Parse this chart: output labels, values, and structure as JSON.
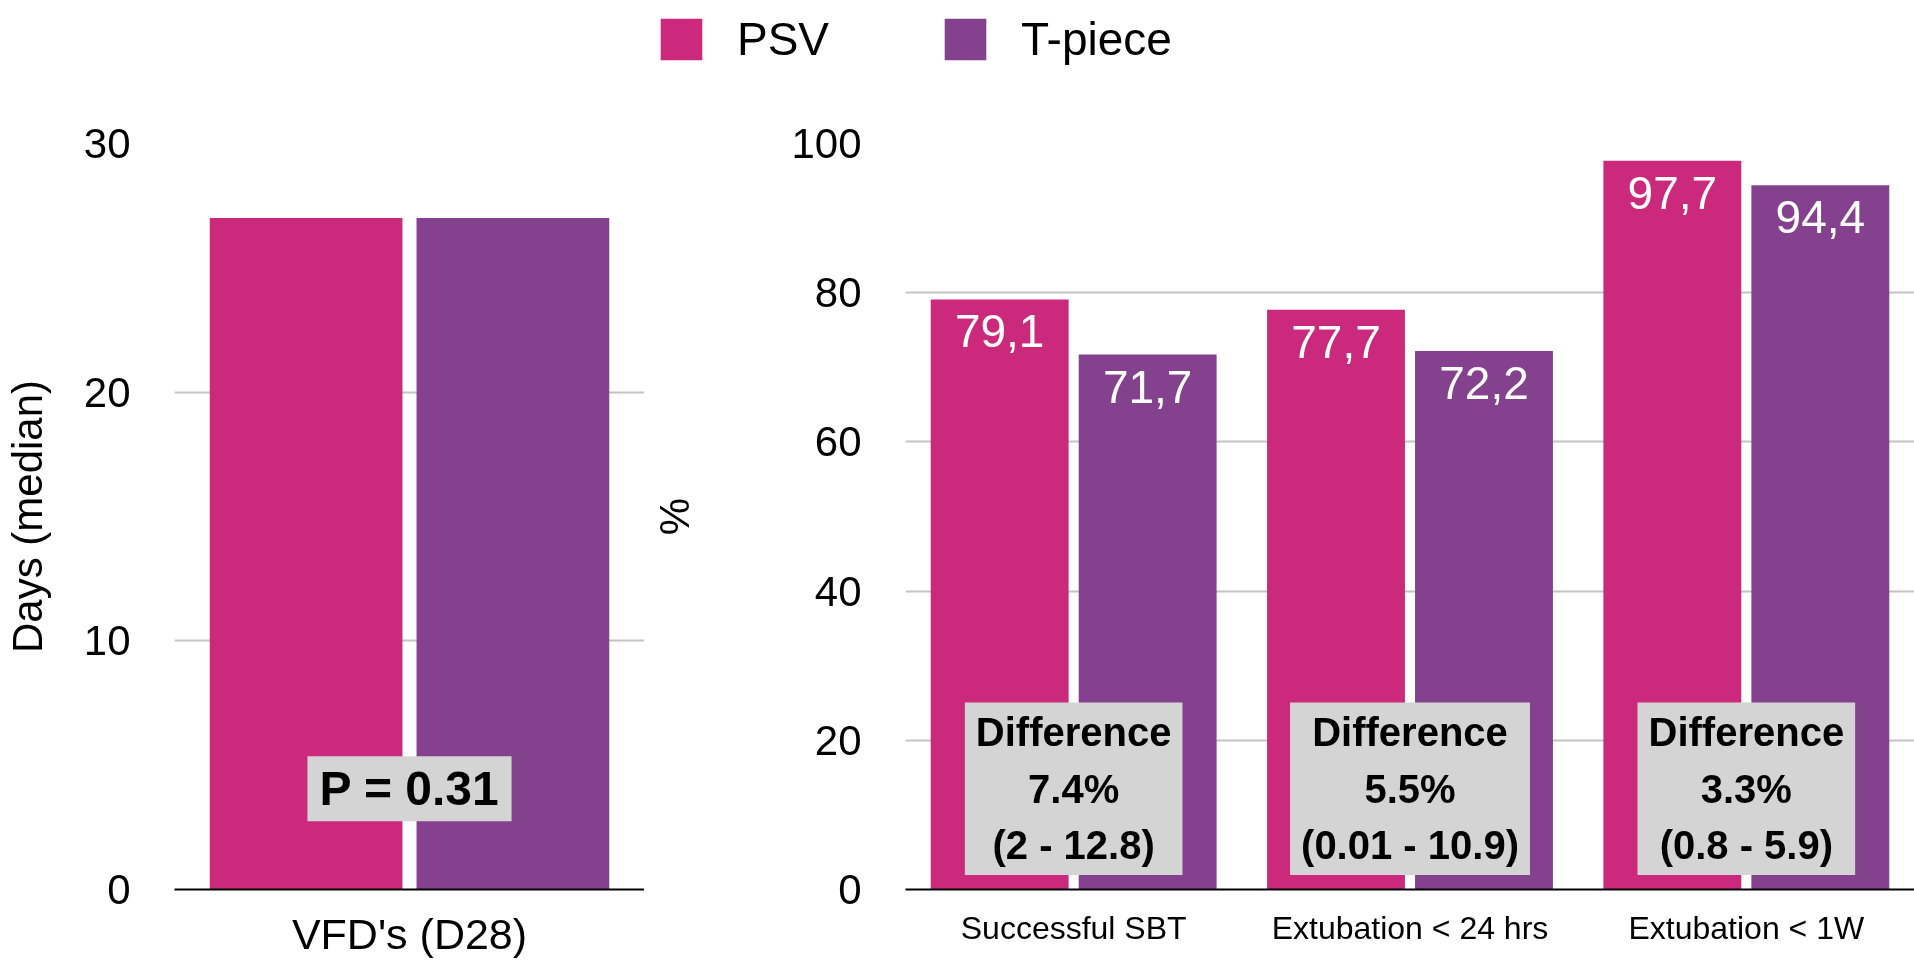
{
  "chart_data": [
    {
      "type": "bar",
      "ylabel": "Days (median)",
      "categories": [
        "VFD's (D28)"
      ],
      "series": [
        {
          "color": "#cb297b",
          "values": [
            27
          ]
        },
        {
          "color": "#84418e",
          "values": [
            27
          ]
        }
      ],
      "ylim": [
        0,
        30
      ],
      "yticks": [
        0,
        10,
        20,
        30
      ],
      "grid": "y",
      "annotations": [
        "P = 0.31"
      ]
    },
    {
      "type": "bar",
      "ylabel": "%",
      "categories": [
        "Successful SBT",
        "Extubation < 24 hrs",
        "Extubation < 1W"
      ],
      "series": [
        {
          "name": "PSV",
          "color": "#cb297b",
          "values": [
            79.1,
            77.7,
            97.7
          ],
          "value_labels": [
            "79,1",
            "77,7",
            "97,7"
          ]
        },
        {
          "name": "T-piece",
          "color": "#84418e",
          "values": [
            71.7,
            72.2,
            94.4
          ],
          "value_labels": [
            "71,7",
            "72,2",
            "94,4"
          ]
        }
      ],
      "ylim": [
        0,
        100
      ],
      "yticks": [
        0,
        20,
        40,
        60,
        80,
        100
      ],
      "grid": "y",
      "legend": "top",
      "annotations": [
        "Difference\n7.4%\n(2 - 12.8)",
        "Difference\n5.5%\n(0.01 - 10.9)",
        "Difference\n3.3%\n(0.8 - 5.9)"
      ]
    }
  ]
}
